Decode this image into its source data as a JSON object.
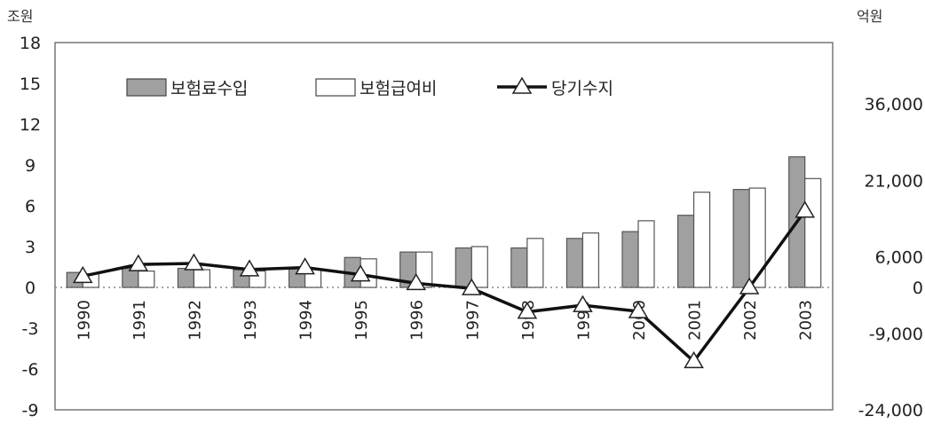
{
  "chart_data": {
    "type": "bar",
    "categories": [
      "1990",
      "1991",
      "1992",
      "1993",
      "1994",
      "1995",
      "1996",
      "1997",
      "1998",
      "1999",
      "2000",
      "2001",
      "2002",
      "2003"
    ],
    "left_axis": {
      "unit": "조원",
      "ylim": [
        -9,
        18
      ],
      "ticks": [
        "18",
        "15",
        "12",
        "9",
        "6",
        "3",
        "0",
        "-3",
        "-6",
        "-9"
      ]
    },
    "right_axis": {
      "unit": "억원",
      "ylim": [
        -24000,
        48000
      ],
      "ticks": [
        "36,000",
        "21,000",
        "6,000",
        "0",
        "-9,000",
        "-24,000"
      ]
    },
    "series": [
      {
        "name": "보험료수입",
        "kind": "bar",
        "axis": "left",
        "color": "#a0a0a0",
        "values": [
          1.1,
          1.4,
          1.4,
          1.3,
          1.4,
          2.2,
          2.6,
          2.9,
          2.9,
          3.6,
          4.1,
          5.3,
          7.2,
          9.6
        ]
      },
      {
        "name": "보험급여비",
        "kind": "bar",
        "axis": "left",
        "color": "#ffffff",
        "values": [
          1.0,
          1.2,
          1.3,
          1.2,
          1.3,
          2.1,
          2.6,
          3.0,
          3.6,
          4.0,
          4.9,
          7.0,
          7.3,
          8.0
        ]
      },
      {
        "name": "당기수지",
        "kind": "line",
        "axis": "right",
        "color": "#111111",
        "marker": "triangle",
        "values": [
          2200,
          4500,
          4700,
          3500,
          3900,
          2500,
          800,
          -200,
          -4800,
          -3500,
          -4700,
          -14500,
          0,
          15000
        ]
      }
    ],
    "legend": {
      "placement": "top-left",
      "items": [
        "보험료수입",
        "보험급여비",
        "당기수지"
      ]
    },
    "grid": false
  }
}
